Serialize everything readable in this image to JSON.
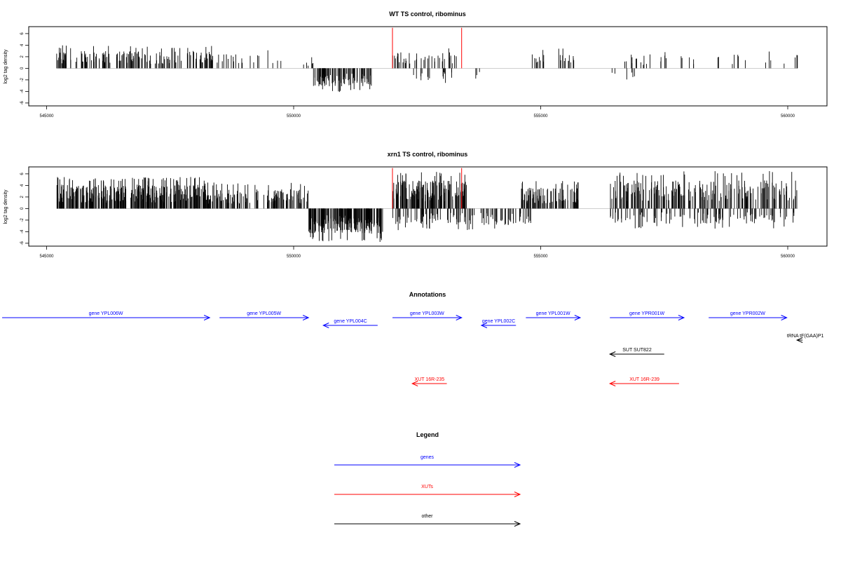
{
  "chart_data": [
    {
      "type": "bar",
      "title": "WT TS control, ribominus",
      "ylabel": "log2 tag density",
      "xlim": [
        544500,
        560800
      ],
      "ylim": [
        -6.5,
        7.2
      ],
      "xticks": [
        545000,
        550000,
        555000,
        560000
      ],
      "yticks": [
        6,
        4,
        2,
        0,
        -2,
        -4,
        -6
      ],
      "region": [
        545200,
        560200
      ],
      "markers": [
        {
          "x": 552000,
          "y": 7
        },
        {
          "x": 553400,
          "y": 7
        }
      ],
      "marker_color": "#ff0000",
      "bar_color": "#000000",
      "baseline_color": "#bebebe",
      "plus_density": [
        {
          "from": 545200,
          "to": 548400,
          "n": 160,
          "max": 4.0
        },
        {
          "from": 548400,
          "to": 549900,
          "n": 22,
          "max": 3.3
        },
        {
          "from": 550200,
          "to": 550400,
          "n": 6,
          "max": 2.0
        },
        {
          "from": 552000,
          "to": 553400,
          "n": 40,
          "max": 3.8
        },
        {
          "from": 554800,
          "to": 555700,
          "n": 25,
          "max": 3.7
        },
        {
          "from": 556700,
          "to": 558100,
          "n": 22,
          "max": 3.2
        },
        {
          "from": 558500,
          "to": 560200,
          "n": 14,
          "max": 3.3
        }
      ],
      "minus_density": [
        {
          "from": 550400,
          "to": 551600,
          "n": 90,
          "max": 4.2
        },
        {
          "from": 552400,
          "to": 554000,
          "n": 18,
          "max": 2.8
        },
        {
          "from": 556400,
          "to": 557100,
          "n": 6,
          "max": 2.8
        }
      ]
    },
    {
      "type": "bar",
      "title": "xrn1 TS control, ribominus",
      "ylabel": "log2 tag density",
      "xlim": [
        544500,
        560800
      ],
      "ylim": [
        -6.5,
        7.2
      ],
      "xticks": [
        545000,
        550000,
        555000,
        560000
      ],
      "yticks": [
        6,
        4,
        2,
        0,
        -2,
        -4,
        -6
      ],
      "region": [
        545200,
        560200
      ],
      "markers": [
        {
          "x": 552000,
          "y": 7
        },
        {
          "x": 553400,
          "y": 7
        }
      ],
      "marker_color": "#ff0000",
      "bar_color": "#000000",
      "baseline_color": "#bebebe",
      "plus_density": [
        {
          "from": 545200,
          "to": 548200,
          "n": 330,
          "max": 5.5
        },
        {
          "from": 548200,
          "to": 550300,
          "n": 140,
          "max": 4.5
        },
        {
          "from": 552000,
          "to": 553500,
          "n": 170,
          "max": 6.5
        },
        {
          "from": 554600,
          "to": 555800,
          "n": 100,
          "max": 4.8
        },
        {
          "from": 556400,
          "to": 560200,
          "n": 220,
          "max": 6.5
        }
      ],
      "minus_density": [
        {
          "from": 550300,
          "to": 551800,
          "n": 200,
          "max": 5.8
        },
        {
          "from": 552000,
          "to": 554800,
          "n": 110,
          "max": 3.8
        },
        {
          "from": 556400,
          "to": 560200,
          "n": 110,
          "max": 3.5
        }
      ]
    },
    {
      "type": "annotation-track",
      "title": "Annotations",
      "features": [
        {
          "label": "gene YPL006W",
          "start": 544100,
          "end": 548300,
          "strand": "+",
          "category": "genes",
          "row": 0
        },
        {
          "label": "gene YPL005W",
          "start": 548500,
          "end": 550300,
          "strand": "+",
          "category": "genes",
          "row": 0
        },
        {
          "label": "gene YPL004C",
          "start": 550600,
          "end": 551700,
          "strand": "-",
          "category": "genes",
          "row": 1
        },
        {
          "label": "gene YPL003W",
          "start": 552000,
          "end": 553400,
          "strand": "+",
          "category": "genes",
          "row": 0
        },
        {
          "label": "gene YPL002C",
          "start": 553800,
          "end": 554500,
          "strand": "-",
          "category": "genes",
          "row": 1
        },
        {
          "label": "gene YPL001W",
          "start": 554700,
          "end": 555800,
          "strand": "+",
          "category": "genes",
          "row": 0
        },
        {
          "label": "gene YPR001W",
          "start": 556400,
          "end": 557900,
          "strand": "+",
          "category": "genes",
          "row": 0
        },
        {
          "label": "gene YPR002W",
          "start": 558400,
          "end": 559980,
          "strand": "+",
          "category": "genes",
          "row": 0
        },
        {
          "label": "tRNA tF(GAA)P1",
          "start": 560200,
          "end": 560300,
          "strand": "-",
          "category": "other",
          "row": 2
        },
        {
          "label": "SUT SUT822",
          "start": 556400,
          "end": 557500,
          "strand": "-",
          "category": "other",
          "row": 3
        },
        {
          "label": "XUT 16R-235",
          "start": 552400,
          "end": 553100,
          "strand": "-",
          "category": "XUTs",
          "row": 4
        },
        {
          "label": "XUT 16R-239",
          "start": 556400,
          "end": 557800,
          "strand": "-",
          "category": "XUTs",
          "row": 4
        }
      ]
    }
  ],
  "legend": {
    "title": "Legend",
    "items": [
      {
        "label": "genes",
        "color": "#0000ff"
      },
      {
        "label": "XUTs",
        "color": "#ff0000"
      },
      {
        "label": "other",
        "color": "#000000"
      }
    ]
  },
  "colors": {
    "genes": "#0000ff",
    "XUTs": "#ff0000",
    "other": "#000000"
  }
}
